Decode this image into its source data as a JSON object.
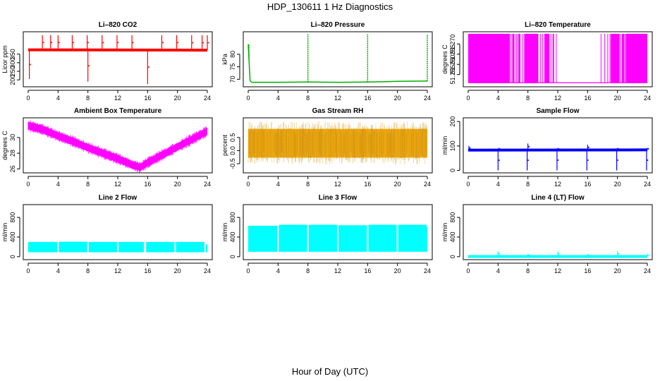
{
  "figure": {
    "title": "HDP_130611  1 Hz Diagnostics",
    "xlabel": "Hour of Day (UTC)"
  },
  "chart_data": [
    {
      "type": "line",
      "title": "Li–820 CO2",
      "ylabel": "Licor ppm",
      "color": "#ff0000",
      "xlim": [
        0,
        24
      ],
      "ylim": [
        160,
        480
      ],
      "xticks": [
        0,
        4,
        8,
        12,
        16,
        20,
        24
      ],
      "yticks": [
        200,
        250,
        300,
        350
      ],
      "style": "band_with_spikes",
      "series": [
        {
          "name": "CO2",
          "x": [
            0,
            24
          ],
          "values": [
            375,
            373
          ]
        }
      ],
      "spikes": [
        {
          "x": 0.15,
          "value": 205
        },
        {
          "x": 1.9,
          "value": 460
        },
        {
          "x": 3.0,
          "value": 460
        },
        {
          "x": 4.0,
          "value": 460
        },
        {
          "x": 5.9,
          "value": 460
        },
        {
          "x": 7.9,
          "value": 460
        },
        {
          "x": 8.0,
          "value": 190
        },
        {
          "x": 9.9,
          "value": 460
        },
        {
          "x": 11.9,
          "value": 460
        },
        {
          "x": 13.9,
          "value": 460
        },
        {
          "x": 16.0,
          "value": 175
        },
        {
          "x": 17.9,
          "value": 460
        },
        {
          "x": 19.9,
          "value": 460
        },
        {
          "x": 21.9,
          "value": 460
        },
        {
          "x": 23.3,
          "value": 460
        },
        {
          "x": 24.0,
          "value": 460
        }
      ]
    },
    {
      "type": "line",
      "title": "Li–820 Pressure",
      "ylabel": "kPa",
      "color": "#00b000",
      "xlim": [
        0,
        24
      ],
      "ylim": [
        67,
        89
      ],
      "xticks": [
        0,
        4,
        8,
        12,
        16,
        20,
        24
      ],
      "yticks": [
        70,
        75,
        80
      ],
      "style": "line",
      "series": [
        {
          "name": "Pressure",
          "x": [
            0,
            0.25,
            0.5,
            4,
            8,
            12,
            16,
            18,
            20,
            24
          ],
          "values": [
            84,
            69.5,
            68.8,
            68.8,
            68.9,
            68.8,
            68.9,
            69.0,
            69.2,
            69.3
          ]
        }
      ],
      "spikes": [
        {
          "x": 0.1,
          "value": 84
        },
        {
          "x": 8.0,
          "value": 88
        },
        {
          "x": 16.0,
          "value": 88
        },
        {
          "x": 24.0,
          "value": 88
        }
      ]
    },
    {
      "type": "line",
      "title": "Li–820 Temperature",
      "ylabel": "degrees C",
      "color": "#ff00ff",
      "xlim": [
        0,
        24
      ],
      "ylim": [
        51.249,
        51.276
      ],
      "xticks": [
        0,
        4,
        8,
        12,
        16,
        20,
        24
      ],
      "yticks": [
        51.255,
        51.26,
        51.265,
        51.27
      ],
      "ytick_labels": [
        "51.255",
        "51.260",
        "51.265",
        "51.270"
      ],
      "style": "toggle",
      "low": 51.251,
      "high": 51.275,
      "high_segments": [
        [
          0,
          5.6
        ],
        [
          5.9,
          6.2
        ],
        [
          6.7,
          7.0
        ],
        [
          7.5,
          9.4
        ],
        [
          10.2,
          10.9
        ],
        [
          11.3,
          11.5
        ],
        [
          19.1,
          20.3
        ],
        [
          20.6,
          20.9
        ],
        [
          21.1,
          24
        ]
      ],
      "toggle_lines": [
        5.75,
        6.4,
        6.55,
        7.3,
        9.7,
        9.95,
        11.1,
        11.8,
        17.8,
        18.3,
        18.7,
        19.0,
        20.45,
        21.0
      ]
    },
    {
      "type": "line",
      "title": "Ambient Box Temperature",
      "ylabel": "degrees C",
      "color": "#ff00ff",
      "xlim": [
        0,
        24
      ],
      "ylim": [
        25.5,
        32.5
      ],
      "xticks": [
        0,
        4,
        8,
        12,
        16,
        20,
        24
      ],
      "yticks": [
        26,
        28,
        30
      ],
      "style": "band",
      "band_width": 0.9,
      "series": [
        {
          "name": "Box Temp",
          "x": [
            0,
            2,
            4,
            6,
            8,
            10,
            12,
            14,
            15,
            16,
            18,
            20,
            22,
            24
          ],
          "values": [
            31.5,
            31.0,
            30.2,
            29.5,
            28.7,
            28.0,
            27.3,
            26.5,
            26.2,
            26.8,
            27.8,
            28.8,
            29.8,
            30.8
          ]
        }
      ]
    },
    {
      "type": "scatter",
      "title": "Gas Stream RH",
      "ylabel": "percent",
      "color": "#e8a000",
      "xlim": [
        0,
        24
      ],
      "ylim": [
        -0.85,
        1.25
      ],
      "xticks": [
        0,
        4,
        8,
        12,
        16,
        20,
        24
      ],
      "yticks": [
        -0.5,
        0.0,
        0.5
      ],
      "ytick_labels": [
        "-0.5",
        "0.0",
        "0.5"
      ],
      "style": "noise",
      "center": 0.28,
      "spread": 0.55,
      "extreme_min": -0.75,
      "extreme_max": 1.15
    },
    {
      "type": "line",
      "title": "Sample Flow",
      "ylabel": "ml/min",
      "color": "#0000ff",
      "xlim": [
        0,
        24
      ],
      "ylim": [
        -10,
        215
      ],
      "xticks": [
        0,
        4,
        8,
        12,
        16,
        20,
        24
      ],
      "yticks": [
        0,
        100,
        200
      ],
      "style": "band_with_spikes",
      "series": [
        {
          "name": "Sample Flow",
          "x": [
            0,
            24
          ],
          "values": [
            83,
            84
          ]
        }
      ],
      "spikes": [
        {
          "x": 0.1,
          "value": 100
        },
        {
          "x": 4.0,
          "value": 0
        },
        {
          "x": 4.1,
          "value": 92
        },
        {
          "x": 7.9,
          "value": 0
        },
        {
          "x": 8.0,
          "value": 110
        },
        {
          "x": 11.9,
          "value": 0
        },
        {
          "x": 12.0,
          "value": 92
        },
        {
          "x": 15.9,
          "value": 0
        },
        {
          "x": 16.0,
          "value": 105
        },
        {
          "x": 19.9,
          "value": 0
        },
        {
          "x": 20.0,
          "value": 92
        },
        {
          "x": 23.9,
          "value": 0
        },
        {
          "x": 24.0,
          "value": 92
        }
      ]
    },
    {
      "type": "area",
      "title": "Line 2 Flow",
      "ylabel": "ml/min",
      "color": "#00ffff",
      "xlim": [
        0,
        24
      ],
      "ylim": [
        -60,
        1060
      ],
      "xticks": [
        0,
        4,
        8,
        12,
        16,
        20,
        24
      ],
      "yticks": [
        0,
        400,
        800
      ],
      "style": "blocks",
      "low": 90,
      "blocks": [
        [
          0,
          3.9,
          300
        ],
        [
          4.1,
          7.9,
          305
        ],
        [
          8.1,
          11.9,
          300
        ],
        [
          12.1,
          15.5,
          300
        ],
        [
          15.8,
          19.6,
          300
        ],
        [
          19.8,
          23.6,
          300
        ]
      ],
      "tail": [
        23.8,
        24.0,
        250
      ]
    },
    {
      "type": "area",
      "title": "Line 3 Flow",
      "ylabel": "ml/min",
      "color": "#00ffff",
      "xlim": [
        0,
        24
      ],
      "ylim": [
        -60,
        1060
      ],
      "xticks": [
        0,
        4,
        8,
        12,
        16,
        20,
        24
      ],
      "yticks": [
        0,
        400,
        800
      ],
      "style": "blocks",
      "low": 100,
      "blocks": [
        [
          0,
          3.9,
          630
        ],
        [
          4.1,
          7.9,
          650
        ],
        [
          8.1,
          11.9,
          650
        ],
        [
          12.1,
          15.9,
          640
        ],
        [
          16.1,
          19.9,
          650
        ],
        [
          20.1,
          23.9,
          650
        ]
      ],
      "tail": [
        23.9,
        24.0,
        600
      ]
    },
    {
      "type": "line",
      "title": "Line 4 (LT) Flow",
      "ylabel": "ml/min",
      "color": "#00ffff",
      "xlim": [
        0,
        24
      ],
      "ylim": [
        -60,
        1060
      ],
      "xticks": [
        0,
        4,
        8,
        12,
        16,
        20,
        24
      ],
      "yticks": [
        0,
        400,
        800
      ],
      "style": "band_with_spikes",
      "series": [
        {
          "name": "Line 4 Flow",
          "x": [
            0,
            24
          ],
          "values": [
            5,
            5
          ]
        }
      ],
      "spikes": [
        {
          "x": 4.0,
          "value": 110
        },
        {
          "x": 8.0,
          "value": 60
        },
        {
          "x": 12.0,
          "value": 110
        },
        {
          "x": 16.0,
          "value": 60
        },
        {
          "x": 20.0,
          "value": 110
        },
        {
          "x": 24.0,
          "value": 60
        }
      ]
    }
  ]
}
